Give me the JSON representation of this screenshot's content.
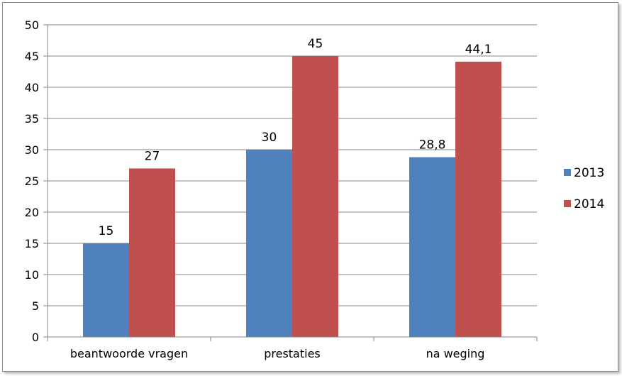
{
  "chart_data": {
    "type": "bar",
    "title": "",
    "xlabel": "",
    "ylabel": "",
    "categories": [
      "beantwoorde vragen",
      "prestaties",
      "na weging"
    ],
    "series": [
      {
        "name": "2013",
        "values": [
          15,
          30,
          28.8
        ],
        "labels": [
          "15",
          "30",
          "28,8"
        ],
        "color": "#4f81bd"
      },
      {
        "name": "2014",
        "values": [
          27,
          45,
          44.1
        ],
        "labels": [
          "27",
          "45",
          "44,1"
        ],
        "color": "#c0504d"
      }
    ],
    "ylim": [
      0,
      50
    ],
    "yticks": [
      0,
      5,
      10,
      15,
      20,
      25,
      30,
      35,
      40,
      45,
      50
    ],
    "grid": true,
    "legend": "right"
  }
}
